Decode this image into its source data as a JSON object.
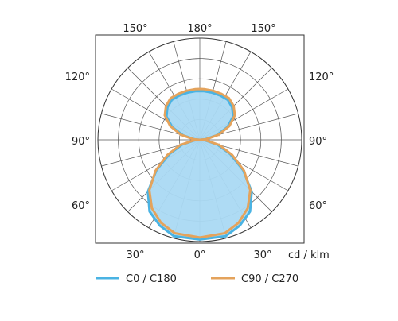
{
  "chart_data": {
    "type": "polar",
    "unit_label": "cd / klm",
    "angle_labels": [
      {
        "angle": 150,
        "text": "150°",
        "side": "top-left"
      },
      {
        "angle": 180,
        "text": "180°",
        "side": "top"
      },
      {
        "angle": 150,
        "text": "150°",
        "side": "top-right"
      },
      {
        "angle": 120,
        "text": "120°",
        "side": "left"
      },
      {
        "angle": 120,
        "text": "120°",
        "side": "right"
      },
      {
        "angle": 90,
        "text": "90°",
        "side": "left"
      },
      {
        "angle": 90,
        "text": "90°",
        "side": "right"
      },
      {
        "angle": 60,
        "text": "60°",
        "side": "left"
      },
      {
        "angle": 60,
        "text": "60°",
        "side": "right"
      },
      {
        "angle": 30,
        "text": "30°",
        "side": "bottom-left"
      },
      {
        "angle": 0,
        "text": "0°",
        "side": "bottom"
      },
      {
        "angle": 30,
        "text": "30°",
        "side": "bottom-right"
      }
    ],
    "rmax": 1,
    "grid": true,
    "legend_position": "bottom",
    "series": [
      {
        "name": "C0 / C180",
        "color": "#4ab3e3",
        "fill": "#aad9f3",
        "angles": [
          0,
          15,
          25,
          35,
          45,
          55,
          65,
          75,
          85,
          90,
          95,
          105,
          115,
          125,
          135,
          145,
          155,
          165,
          175,
          180
        ],
        "values": [
          0.98,
          0.98,
          0.93,
          0.86,
          0.72,
          0.52,
          0.33,
          0.18,
          0.05,
          0.0,
          0.05,
          0.17,
          0.3,
          0.4,
          0.45,
          0.48,
          0.48,
          0.48,
          0.48,
          0.48
        ]
      },
      {
        "name": "C90 / C270",
        "color": "#e4a35c",
        "fill": "none",
        "angles": [
          0,
          15,
          25,
          35,
          45,
          55,
          65,
          75,
          85,
          90,
          95,
          105,
          115,
          125,
          135,
          145,
          155,
          165,
          175,
          180
        ],
        "values": [
          0.96,
          0.95,
          0.9,
          0.82,
          0.7,
          0.53,
          0.35,
          0.2,
          0.06,
          0.0,
          0.06,
          0.19,
          0.32,
          0.42,
          0.47,
          0.5,
          0.5,
          0.5,
          0.5,
          0.5
        ]
      }
    ]
  }
}
